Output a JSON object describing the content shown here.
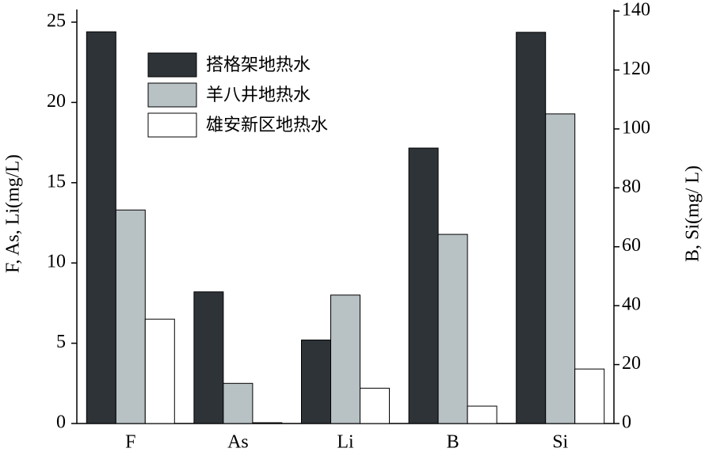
{
  "chart_data": {
    "type": "bar",
    "categories": [
      "F",
      "As",
      "Li",
      "B",
      "Si"
    ],
    "category_axis": [
      "y",
      "y",
      "y",
      "y2",
      "y2"
    ],
    "y_label": "F, As, Li(mg/L)",
    "y2_label": "B, Si(mg/ L)",
    "series": [
      {
        "name": "搭格架地热水",
        "color": "#2e3338",
        "values": [
          24.4,
          8.2,
          5.2,
          93.5,
          132.8
        ]
      },
      {
        "name": "羊八井地热水",
        "color": "#b8c1c4",
        "values": [
          13.3,
          2.5,
          8.0,
          64.2,
          105.1
        ]
      },
      {
        "name": "雄安新区地热水",
        "color": "#ffffff",
        "values": [
          6.5,
          0.05,
          2.2,
          5.9,
          18.5
        ]
      }
    ],
    "ylim": [
      0,
      25
    ],
    "yticks": [
      0,
      5,
      10,
      15,
      20,
      25
    ],
    "y2lim": [
      0,
      140
    ],
    "y2ticks": [
      0,
      20,
      40,
      60,
      80,
      100,
      120,
      140
    ],
    "legend": "upper-left"
  }
}
